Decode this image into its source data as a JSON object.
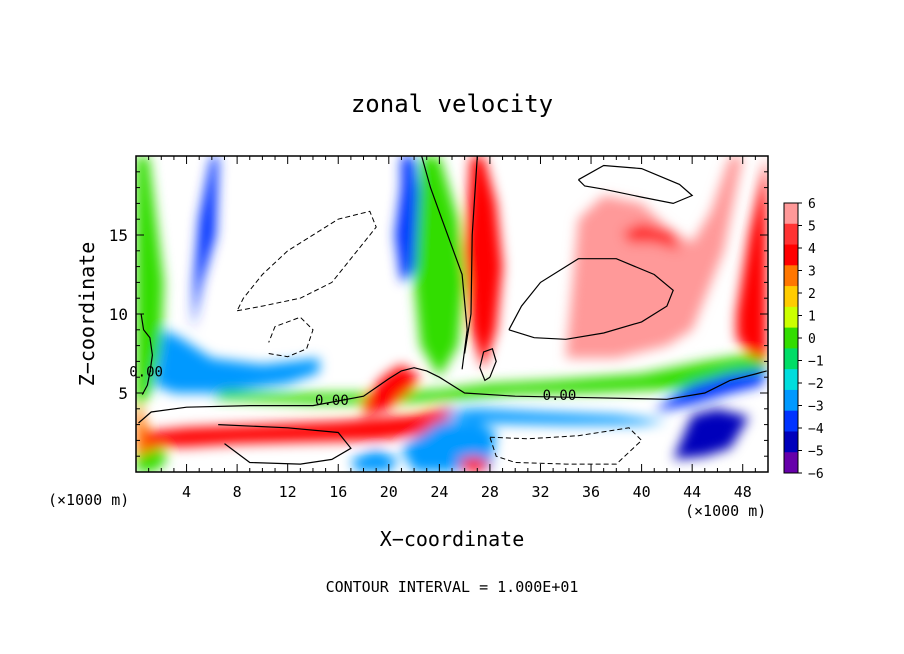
{
  "chart_data": {
    "type": "heatmap",
    "title": "zonal velocity",
    "xlabel": "X−coordinate",
    "ylabel": "Z−coordinate",
    "x_unit_left": "(×1000 m)",
    "x_unit_right": "(×1000 m)",
    "footer": "CONTOUR INTERVAL = 1.000E+01",
    "xlim": [
      0,
      50
    ],
    "ylim": [
      0,
      20
    ],
    "x_ticks": [
      4,
      8,
      12,
      16,
      20,
      24,
      28,
      32,
      36,
      40,
      44,
      48
    ],
    "y_ticks": [
      5,
      10,
      15
    ],
    "colorbar": {
      "levels": [
        6,
        5,
        4,
        3,
        2,
        1,
        0,
        -1,
        -2,
        -3,
        -4,
        -5,
        -6
      ],
      "labels": [
        "6",
        "5",
        "4",
        "3",
        "2",
        "1",
        "0",
        "−1",
        "−2",
        "−3",
        "−4",
        "−5",
        "−6"
      ],
      "colors": [
        "#ff9999",
        "#ff3333",
        "#ff0000",
        "#ff7700",
        "#ffcc00",
        "#ccff00",
        "#33dd00",
        "#00dd66",
        "#00dddd",
        "#0099ff",
        "#0033ff",
        "#0000bb",
        "#6600aa"
      ]
    },
    "contour_labels": [
      {
        "text": "0.00",
        "x": 0.8,
        "z": 6.3
      },
      {
        "text": "0.00",
        "x": 15.5,
        "z": 4.5
      },
      {
        "text": "0.00",
        "x": 33.5,
        "z": 4.8
      }
    ],
    "bands": [
      {
        "level": 3,
        "x": [
          0,
          0.5,
          1.5,
          1.5,
          0.8,
          0.4,
          0
        ],
        "z": [
          0.3,
          0.2,
          0.8,
          2.0,
          3.0,
          4.0,
          5.5
        ]
      },
      {
        "level": 0,
        "x": [
          0,
          1.2,
          2.0,
          2.2,
          1.6,
          1.0,
          0.4,
          0
        ],
        "z": [
          4.0,
          5.0,
          8.0,
          12.0,
          16.0,
          19.99,
          19.99,
          19.99
        ]
      },
      {
        "level": -4,
        "x": [
          4.5,
          5.2,
          6.3,
          6.5,
          6.0,
          5.0,
          4.6
        ],
        "z": [
          9.0,
          12.0,
          15.0,
          19.99,
          19.99,
          16.0,
          12.0
        ]
      },
      {
        "level": -3,
        "x": [
          1.5,
          3.0,
          6.0,
          9.0,
          12.0,
          14.5,
          14.5,
          10.0,
          6.0,
          3.5,
          2.2
        ],
        "z": [
          5.5,
          5.0,
          5.0,
          5.3,
          5.6,
          6.3,
          7.2,
          6.8,
          7.2,
          8.5,
          9.0
        ]
      },
      {
        "level": -4,
        "x": [
          21.0,
          22.0,
          22.5,
          22.6,
          21.8,
          21.0,
          20.5,
          21.0
        ],
        "z": [
          19.99,
          19.99,
          17.0,
          14.0,
          12.5,
          12.0,
          15.0,
          18.0
        ]
      },
      {
        "level": 0,
        "x": [
          22.5,
          24.0,
          25.5,
          26.0,
          25.5,
          24.0,
          22.5,
          22.0
        ],
        "z": [
          19.99,
          19.99,
          16.0,
          12.0,
          8.0,
          6.0,
          8.0,
          12.0
        ]
      },
      {
        "level": 4,
        "x": [
          26.5,
          27.5,
          28.5,
          29.0,
          28.5,
          27.5,
          26.5,
          26.0
        ],
        "z": [
          19.99,
          19.99,
          17.0,
          13.0,
          9.0,
          6.5,
          9.0,
          14.0
        ]
      },
      {
        "level": 0,
        "x": [
          6.0,
          14.0,
          20.0,
          26.0,
          30.0,
          36.0,
          44.0,
          48.0,
          49.9,
          49.9,
          45.0,
          40.0,
          33.0,
          28.0,
          24.0,
          18.0,
          12.0,
          7.0
        ],
        "z": [
          4.6,
          4.3,
          4.3,
          4.6,
          4.9,
          5.0,
          5.3,
          6.0,
          6.6,
          7.6,
          7.0,
          6.2,
          5.8,
          5.6,
          5.2,
          5.0,
          5.0,
          5.2
        ]
      },
      {
        "level": 4,
        "x": [
          0.5,
          4.0,
          10.0,
          16.0,
          22.0,
          25.0,
          24.5,
          19.0,
          13.0,
          8.0,
          4.0,
          1.0
        ],
        "z": [
          2.5,
          2.8,
          3.0,
          3.2,
          3.6,
          4.2,
          2.5,
          2.0,
          1.9,
          1.8,
          1.6,
          1.6
        ]
      },
      {
        "level": -3,
        "x": [
          24.0,
          27.0,
          32.0,
          38.0,
          42.0,
          40.0,
          34.0,
          28.0,
          25.0
        ],
        "z": [
          3.8,
          4.0,
          3.8,
          3.6,
          3.2,
          3.0,
          3.0,
          3.1,
          3.4
        ]
      },
      {
        "level": -3,
        "x": [
          22.0,
          25.0,
          28.0,
          28.5,
          27.0,
          24.0,
          21.0
        ],
        "z": [
          0.01,
          0.01,
          0.01,
          2.5,
          3.2,
          3.2,
          1.5
        ]
      },
      {
        "level": -4,
        "x": [
          41.0,
          44.0,
          47.0,
          49.5,
          49.9,
          47.0,
          44.0,
          42.5
        ],
        "z": [
          3.8,
          4.3,
          5.0,
          5.5,
          6.5,
          6.2,
          5.5,
          4.8
        ]
      },
      {
        "level": -5,
        "x": [
          42.5,
          45.0,
          47.0,
          48.5,
          46.0,
          44.0
        ],
        "z": [
          0.8,
          1.0,
          1.5,
          3.5,
          4.0,
          3.6
        ]
      },
      {
        "level": 4,
        "x": [
          47.5,
          48.5,
          49.9,
          49.9,
          48.5,
          47.5
        ],
        "z": [
          10.0,
          15.0,
          19.99,
          7.0,
          7.5,
          8.5
        ]
      },
      {
        "level": 6,
        "x": [
          34.0,
          38.0,
          42.0,
          44.0,
          45.0,
          46.5,
          48.0,
          47.0,
          45.5,
          44.0,
          42.0,
          40.0,
          37.0,
          35.0
        ],
        "z": [
          7.2,
          7.2,
          8.0,
          9.0,
          11.0,
          14.0,
          19.99,
          19.99,
          16.5,
          14.5,
          15.5,
          17.0,
          17.5,
          16.0
        ]
      },
      {
        "level": 5,
        "x": [
          39.0,
          41.0,
          43.0,
          42.5,
          40.0,
          38.5
        ],
        "z": [
          14.5,
          14.5,
          14.0,
          15.2,
          15.8,
          15.2
        ]
      },
      {
        "level": 4,
        "x": [
          18.0,
          20.0,
          21.5,
          22.5,
          21.0,
          19.5,
          18.0
        ],
        "z": [
          3.6,
          4.0,
          5.0,
          6.0,
          6.8,
          6.0,
          4.5
        ]
      },
      {
        "level": 0,
        "x": [
          0,
          1.5,
          2.5,
          2.0,
          0.8,
          0
        ],
        "z": [
          0.01,
          0.01,
          0.8,
          1.6,
          1.2,
          1.0
        ]
      },
      {
        "level": -5,
        "x": [
          44.5,
          46.0,
          47.2,
          47.0,
          45.5
        ],
        "z": [
          1.5,
          1.8,
          2.4,
          3.2,
          2.8
        ]
      },
      {
        "level": 4,
        "x": [
          26.0,
          27.5,
          28.0,
          27.0,
          25.5
        ],
        "z": [
          0.01,
          0.01,
          0.6,
          1.0,
          0.8
        ]
      },
      {
        "level": -3,
        "x": [
          17.5,
          20.0,
          20.8,
          19.0,
          17.0
        ],
        "z": [
          0.01,
          0.01,
          0.8,
          1.4,
          0.8
        ]
      }
    ],
    "contours": [
      {
        "level": 0,
        "dashed": false,
        "x": [
          0.5,
          0.9,
          1.1,
          1.3,
          1.1,
          0.6,
          0.4
        ],
        "z": [
          4.9,
          5.5,
          6.3,
          7.4,
          8.5,
          9.0,
          10.0
        ]
      },
      {
        "level": 0,
        "dashed": false,
        "x": [
          0.2,
          1.2,
          4.0,
          9.0,
          14.0,
          18.0,
          20.0,
          21.0,
          22.0,
          23.0,
          24.0,
          26.0,
          30.0,
          36.0,
          42.0,
          45.0,
          47.0,
          49.0,
          49.9
        ],
        "z": [
          3.1,
          3.8,
          4.1,
          4.2,
          4.2,
          4.8,
          5.9,
          6.4,
          6.6,
          6.4,
          6.0,
          5.0,
          4.8,
          4.7,
          4.6,
          5.0,
          5.8,
          6.2,
          6.4
        ]
      },
      {
        "level": 0,
        "dashed": false,
        "x": [
          22.6,
          23.3,
          24.2,
          25.8,
          26.2,
          25.8
        ],
        "z": [
          19.99,
          18.0,
          16.0,
          12.5,
          9.0,
          6.5
        ]
      },
      {
        "level": 0,
        "dashed": false,
        "x": [
          27.0,
          26.6,
          26.5,
          26.0
        ],
        "z": [
          19.99,
          15.0,
          10.0,
          7.5
        ]
      },
      {
        "level": 0,
        "dashed": false,
        "x": [
          6.5,
          12.0,
          16.0,
          17.0,
          15.5,
          13.0,
          9.0,
          7.0
        ],
        "z": [
          3.0,
          2.8,
          2.5,
          1.5,
          0.8,
          0.5,
          0.6,
          1.8
        ]
      },
      {
        "level": 0,
        "dashed": true,
        "x": [
          8.0,
          10.0,
          13.0,
          15.5,
          17.5,
          19.0,
          18.5,
          16.0,
          12.0,
          10.0,
          8.5,
          8.0
        ],
        "z": [
          10.2,
          10.5,
          11.0,
          12.0,
          14.0,
          15.5,
          16.5,
          16.0,
          14.0,
          12.5,
          11.0,
          10.2
        ]
      },
      {
        "level": 0,
        "dashed": true,
        "x": [
          10.5,
          12.0,
          13.5,
          14.0,
          13.0,
          11.0,
          10.5
        ],
        "z": [
          7.5,
          7.3,
          7.8,
          9.0,
          9.8,
          9.2,
          8.2
        ]
      },
      {
        "level": 0,
        "dashed": true,
        "x": [
          28.0,
          31.0,
          35.0,
          39.0,
          40.0,
          38.0,
          34.0,
          30.0,
          28.5,
          28.0
        ],
        "z": [
          2.2,
          2.1,
          2.3,
          2.8,
          2.0,
          0.5,
          0.5,
          0.6,
          1.0,
          2.2
        ]
      },
      {
        "level": 0,
        "dashed": false,
        "x": [
          35.0,
          37.0,
          40.0,
          43.0,
          44.0,
          42.5,
          40.0,
          37.0,
          35.5,
          35.0
        ],
        "z": [
          18.5,
          19.4,
          19.2,
          18.2,
          17.5,
          17.0,
          17.4,
          17.9,
          18.1,
          18.5
        ]
      },
      {
        "level": 0,
        "dashed": false,
        "x": [
          29.5,
          31.5,
          34.0,
          37.0,
          40.0,
          42.0,
          42.5,
          41.0,
          38.0,
          35.0,
          32.0,
          30.5,
          29.5
        ],
        "z": [
          9.0,
          8.5,
          8.4,
          8.8,
          9.5,
          10.5,
          11.5,
          12.5,
          13.5,
          13.5,
          12.0,
          10.5,
          9.0
        ]
      },
      {
        "level": 0,
        "dashed": false,
        "x": [
          28.0,
          28.5,
          28.2,
          27.5,
          27.2,
          27.6,
          28.0
        ],
        "z": [
          6.0,
          7.0,
          7.8,
          7.6,
          6.6,
          5.8,
          6.0
        ]
      }
    ]
  }
}
